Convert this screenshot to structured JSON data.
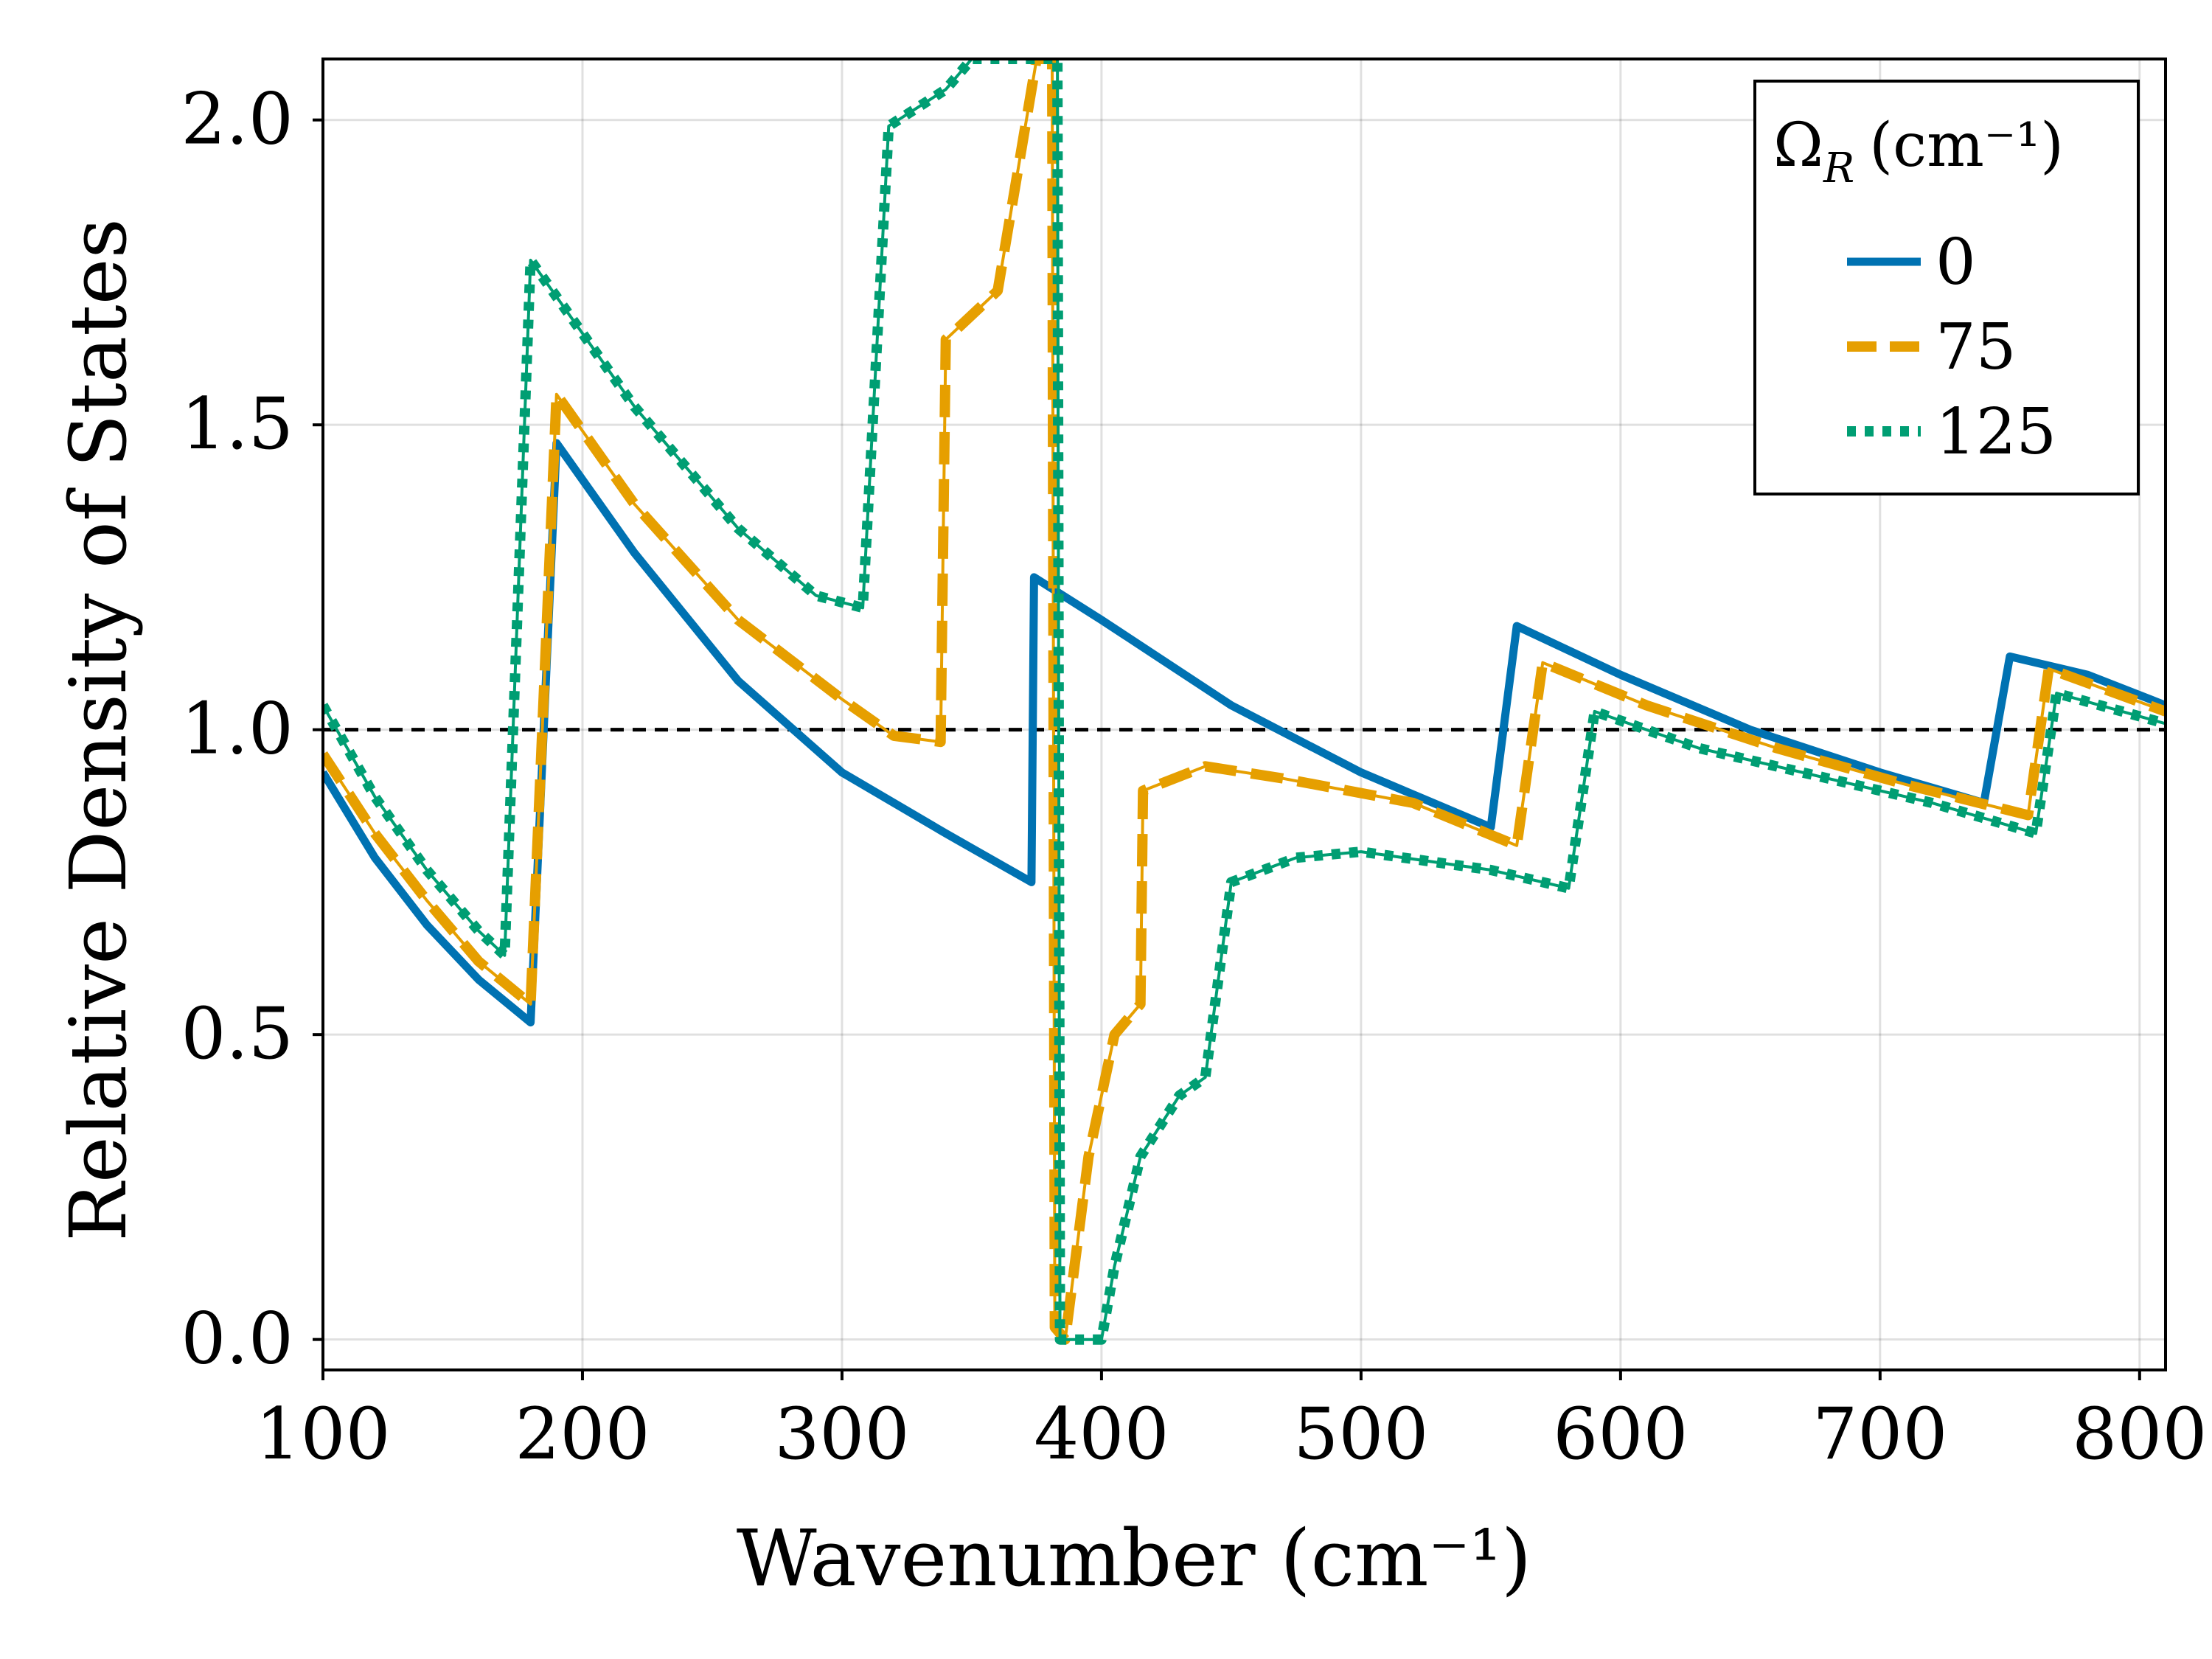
{
  "chart_data": {
    "type": "line",
    "title": "",
    "xlabel": "Wavenumber (cm⁻¹)",
    "ylabel": "Relative Density of States",
    "xlim": [
      100,
      810
    ],
    "ylim": [
      -0.05,
      2.1
    ],
    "grid": true,
    "x_ticks": [
      100,
      200,
      300,
      400,
      500,
      600,
      700,
      800
    ],
    "x_tick_labels": [
      "100",
      "200",
      "300",
      "400",
      "500",
      "600",
      "700",
      "800"
    ],
    "y_ticks": [
      0.0,
      0.5,
      1.0,
      1.5,
      2.0
    ],
    "y_tick_labels": [
      "0.0",
      "0.5",
      "1.0",
      "1.5",
      "2.0"
    ],
    "reference_line": {
      "y": 1.0,
      "style": "dashed",
      "color": "#000000"
    },
    "legend": {
      "position": "top-right",
      "title": "Ω",
      "title_sub": "R",
      "title_unit": "(cm⁻¹)"
    },
    "series": [
      {
        "name": "0",
        "color": "#0072b2",
        "style": "solid",
        "points": [
          [
            100,
            0.93
          ],
          [
            120,
            0.79
          ],
          [
            140,
            0.68
          ],
          [
            160,
            0.59
          ],
          [
            180,
            0.52
          ],
          [
            190,
            1.47
          ],
          [
            220,
            1.29
          ],
          [
            260,
            1.08
          ],
          [
            300,
            0.93
          ],
          [
            340,
            0.83
          ],
          [
            373,
            0.75
          ],
          [
            374,
            1.25
          ],
          [
            400,
            1.18
          ],
          [
            450,
            1.04
          ],
          [
            500,
            0.93
          ],
          [
            550,
            0.84
          ],
          [
            560,
            1.17
          ],
          [
            600,
            1.09
          ],
          [
            650,
            1.0
          ],
          [
            700,
            0.93
          ],
          [
            740,
            0.88
          ],
          [
            750,
            1.12
          ],
          [
            780,
            1.09
          ],
          [
            810,
            1.04
          ]
        ]
      },
      {
        "name": "75",
        "color": "#e69f00",
        "style": "dashed",
        "points": [
          [
            100,
            0.96
          ],
          [
            120,
            0.83
          ],
          [
            140,
            0.72
          ],
          [
            160,
            0.62
          ],
          [
            180,
            0.55
          ],
          [
            190,
            1.55
          ],
          [
            220,
            1.37
          ],
          [
            260,
            1.18
          ],
          [
            300,
            1.05
          ],
          [
            320,
            0.99
          ],
          [
            338,
            0.98
          ],
          [
            340,
            1.64
          ],
          [
            360,
            1.72
          ],
          [
            375,
            2.1
          ],
          [
            381,
            2.1
          ],
          [
            382,
            0.02
          ],
          [
            386,
            0.0
          ],
          [
            395,
            0.3
          ],
          [
            405,
            0.5
          ],
          [
            415,
            0.55
          ],
          [
            416,
            0.9
          ],
          [
            440,
            0.94
          ],
          [
            470,
            0.92
          ],
          [
            520,
            0.88
          ],
          [
            560,
            0.81
          ],
          [
            570,
            1.11
          ],
          [
            610,
            1.04
          ],
          [
            660,
            0.97
          ],
          [
            710,
            0.91
          ],
          [
            757,
            0.86
          ],
          [
            765,
            1.1
          ],
          [
            810,
            1.03
          ]
        ]
      },
      {
        "name": "125",
        "color": "#009e73",
        "style": "dotted",
        "points": [
          [
            100,
            1.04
          ],
          [
            120,
            0.89
          ],
          [
            140,
            0.77
          ],
          [
            160,
            0.67
          ],
          [
            170,
            0.63
          ],
          [
            180,
            1.77
          ],
          [
            220,
            1.53
          ],
          [
            260,
            1.33
          ],
          [
            290,
            1.22
          ],
          [
            308,
            1.2
          ],
          [
            318,
            1.99
          ],
          [
            340,
            2.05
          ],
          [
            350,
            2.1
          ],
          [
            383,
            2.1
          ],
          [
            384,
            0.0
          ],
          [
            390,
            0.0
          ],
          [
            400,
            0.0
          ],
          [
            405,
            0.12
          ],
          [
            415,
            0.3
          ],
          [
            430,
            0.4
          ],
          [
            440,
            0.43
          ],
          [
            450,
            0.75
          ],
          [
            475,
            0.79
          ],
          [
            500,
            0.8
          ],
          [
            550,
            0.77
          ],
          [
            580,
            0.74
          ],
          [
            590,
            1.03
          ],
          [
            630,
            0.97
          ],
          [
            680,
            0.92
          ],
          [
            720,
            0.88
          ],
          [
            760,
            0.83
          ],
          [
            768,
            1.06
          ],
          [
            810,
            1.01
          ]
        ]
      }
    ]
  }
}
